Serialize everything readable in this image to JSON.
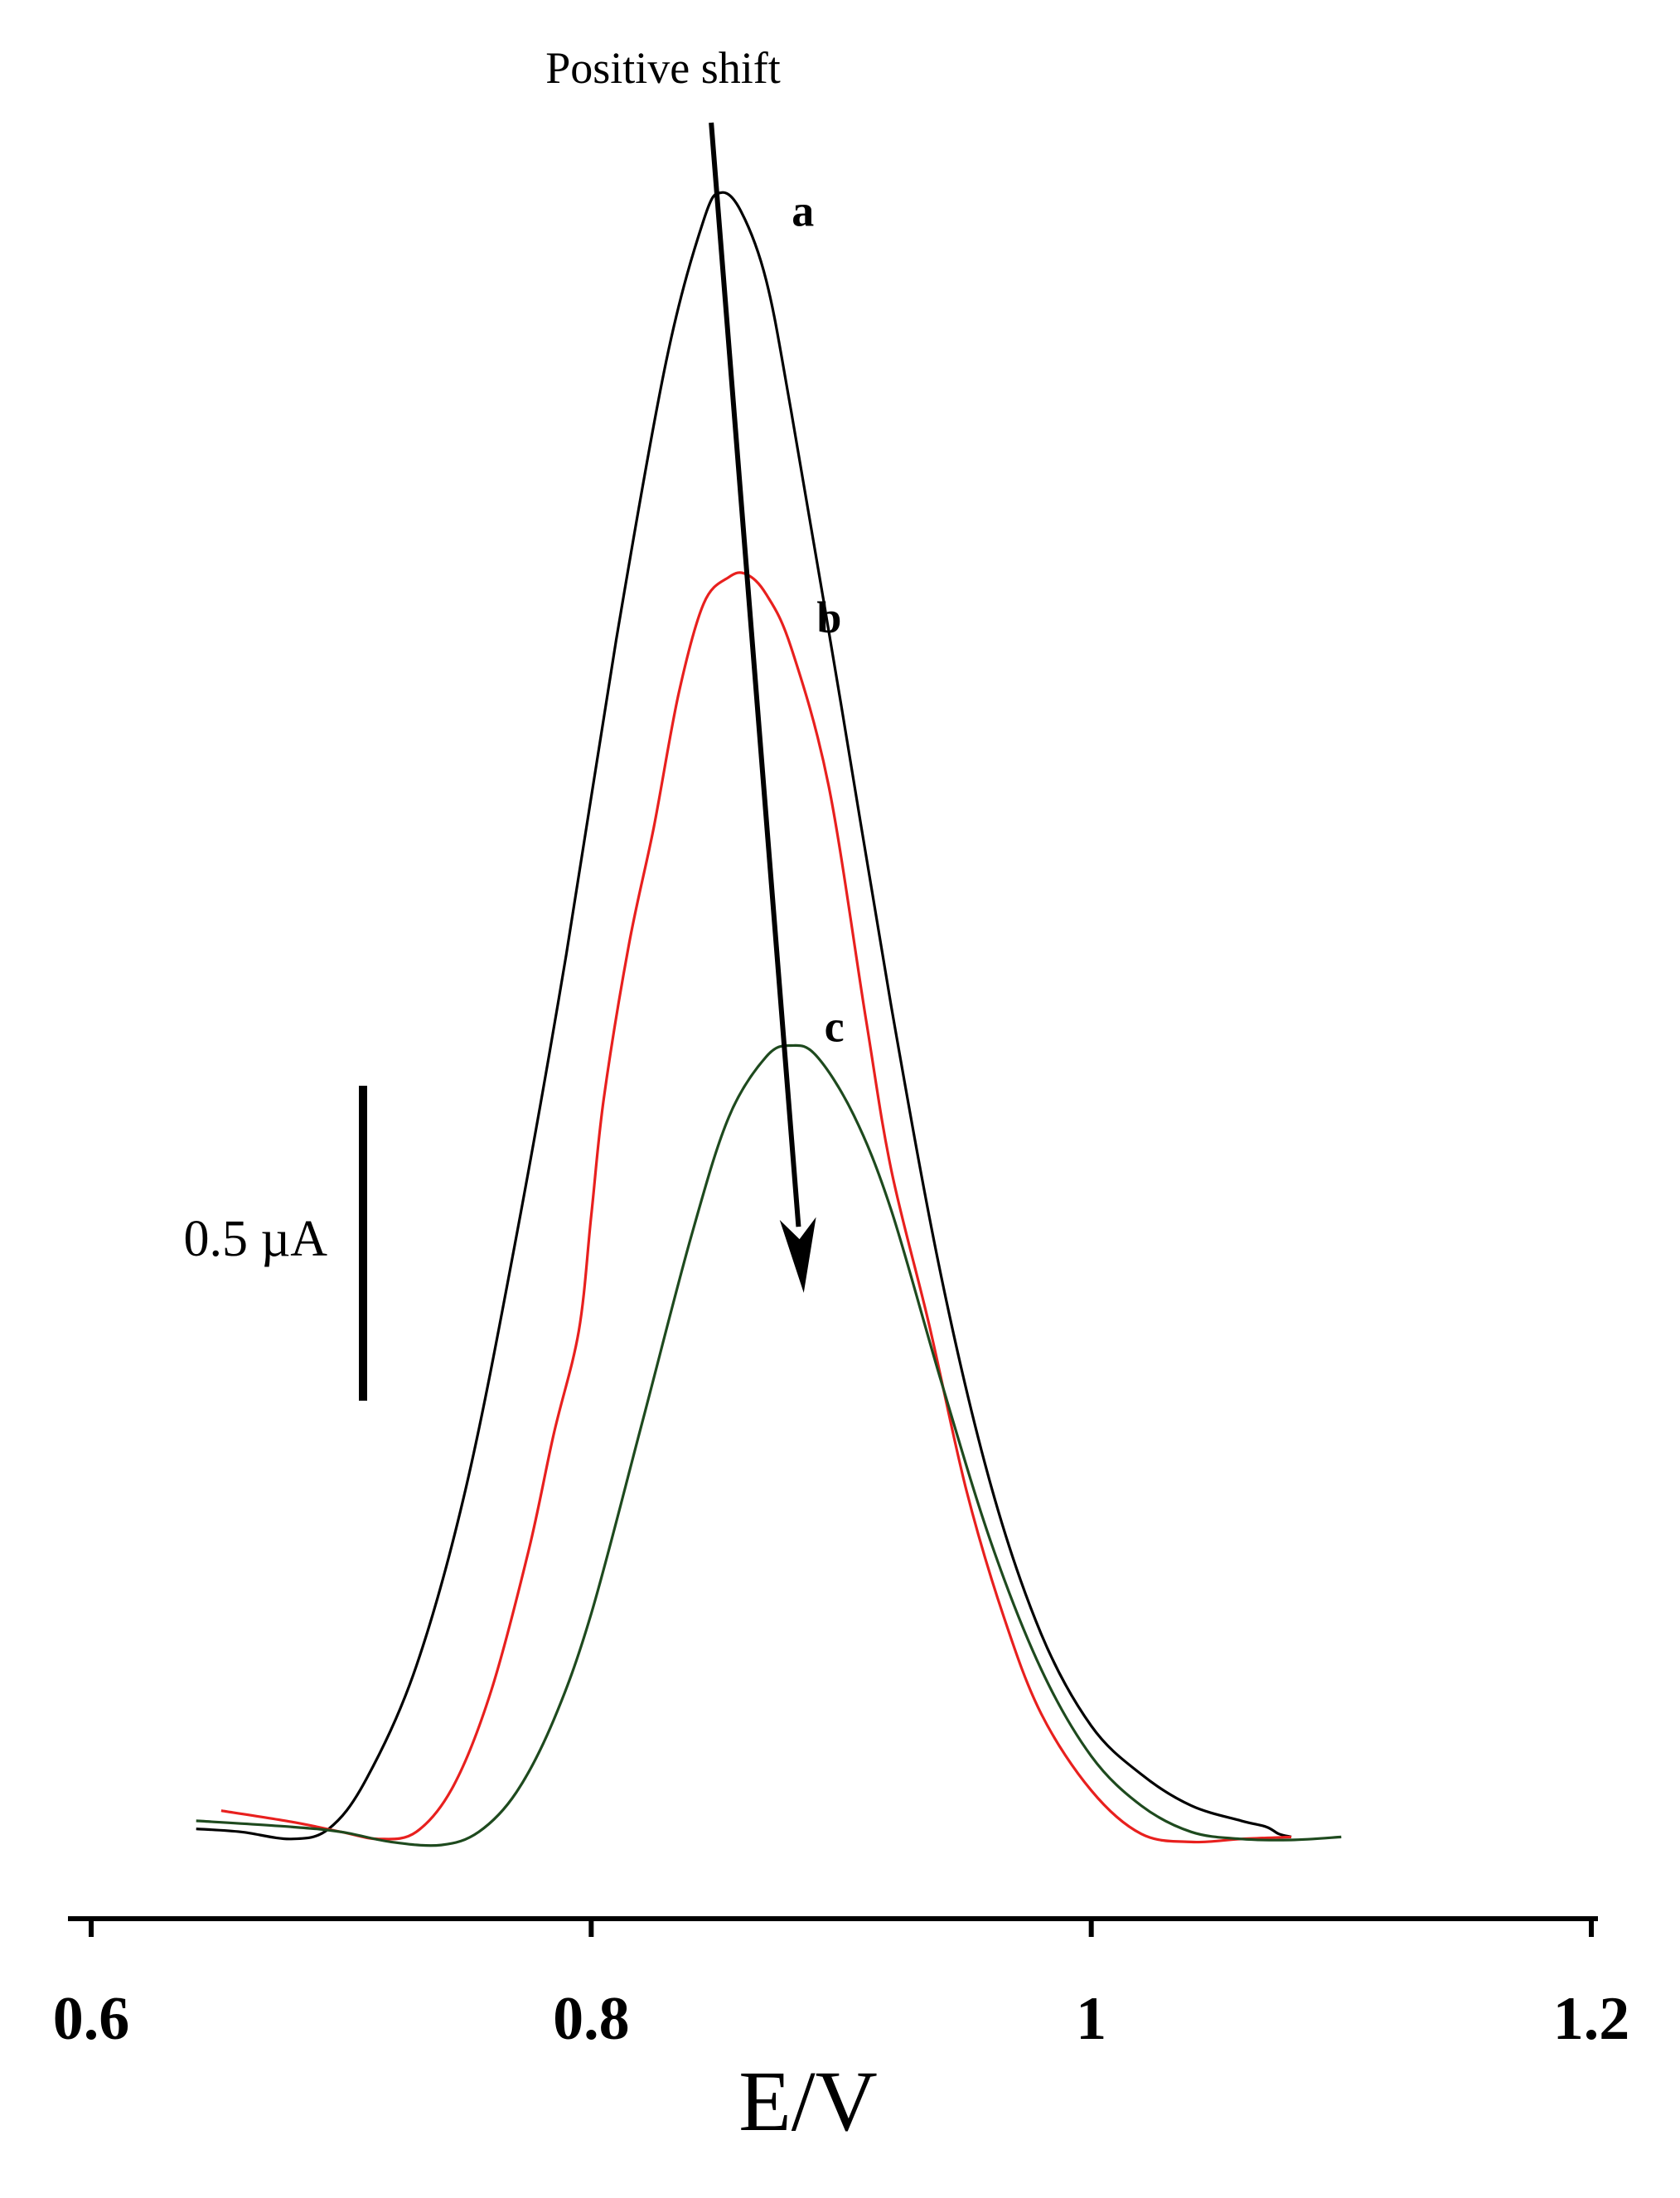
{
  "chart_data": {
    "type": "line",
    "title": "",
    "xlabel": "E/V",
    "ylabel": "",
    "xlim": [
      0.6,
      1.2
    ],
    "ylim": [
      -0.05,
      1.85
    ],
    "x_ticks": [
      0.6,
      0.8,
      1.0,
      1.2
    ],
    "x_tick_labels": [
      "0.6",
      "0.8",
      "1",
      "1.2"
    ],
    "grid": false,
    "legend": "none",
    "scale_bar": {
      "label": "0.5 µA",
      "value": 0.5
    },
    "annotation": {
      "text": "Positive shift",
      "arrow_from": [
        0.848,
        2.0
      ],
      "arrow_to": [
        0.885,
        0.57
      ]
    },
    "series": [
      {
        "label": "a",
        "color": "#000000",
        "points": [
          [
            0.642,
            0.039
          ],
          [
            0.66,
            0.036
          ],
          [
            0.68,
            0.029
          ],
          [
            0.695,
            0.039
          ],
          [
            0.71,
            0.088
          ],
          [
            0.73,
            0.2
          ],
          [
            0.75,
            0.378
          ],
          [
            0.77,
            0.625
          ],
          [
            0.79,
            0.905
          ],
          [
            0.81,
            1.217
          ],
          [
            0.83,
            1.493
          ],
          [
            0.845,
            1.633
          ],
          [
            0.852,
            1.66
          ],
          [
            0.86,
            1.641
          ],
          [
            0.87,
            1.573
          ],
          [
            0.88,
            1.443
          ],
          [
            0.9,
            1.152
          ],
          [
            0.92,
            0.854
          ],
          [
            0.94,
            0.586
          ],
          [
            0.96,
            0.378
          ],
          [
            0.98,
            0.232
          ],
          [
            1.0,
            0.141
          ],
          [
            1.02,
            0.093
          ],
          [
            1.04,
            0.062
          ],
          [
            1.06,
            0.047
          ],
          [
            1.07,
            0.041
          ],
          [
            1.075,
            0.034
          ],
          [
            1.08,
            0.031
          ]
        ]
      },
      {
        "label": "b",
        "color": "#e8201e",
        "points": [
          [
            0.652,
            0.057
          ],
          [
            0.68,
            0.046
          ],
          [
            0.7,
            0.036
          ],
          [
            0.715,
            0.029
          ],
          [
            0.73,
            0.036
          ],
          [
            0.745,
            0.082
          ],
          [
            0.76,
            0.176
          ],
          [
            0.775,
            0.315
          ],
          [
            0.785,
            0.43
          ],
          [
            0.795,
            0.532
          ],
          [
            0.8,
            0.646
          ],
          [
            0.805,
            0.762
          ],
          [
            0.815,
            0.914
          ],
          [
            0.825,
            1.031
          ],
          [
            0.835,
            1.164
          ],
          [
            0.845,
            1.253
          ],
          [
            0.855,
            1.279
          ],
          [
            0.862,
            1.282
          ],
          [
            0.87,
            1.262
          ],
          [
            0.88,
            1.209
          ],
          [
            0.895,
            1.072
          ],
          [
            0.91,
            0.839
          ],
          [
            0.92,
            0.692
          ],
          [
            0.935,
            0.54
          ],
          [
            0.95,
            0.375
          ],
          [
            0.965,
            0.249
          ],
          [
            0.98,
            0.153
          ],
          [
            1.0,
            0.077
          ],
          [
            1.02,
            0.034
          ],
          [
            1.04,
            0.026
          ],
          [
            1.06,
            0.029
          ],
          [
            1.08,
            0.031
          ]
        ]
      },
      {
        "label": "c",
        "color": "#1e4a1e",
        "points": [
          [
            0.642,
            0.047
          ],
          [
            0.68,
            0.041
          ],
          [
            0.7,
            0.036
          ],
          [
            0.72,
            0.026
          ],
          [
            0.74,
            0.023
          ],
          [
            0.755,
            0.036
          ],
          [
            0.77,
            0.075
          ],
          [
            0.785,
            0.147
          ],
          [
            0.8,
            0.252
          ],
          [
            0.82,
            0.438
          ],
          [
            0.84,
            0.626
          ],
          [
            0.855,
            0.744
          ],
          [
            0.87,
            0.804
          ],
          [
            0.88,
            0.815
          ],
          [
            0.89,
            0.805
          ],
          [
            0.905,
            0.746
          ],
          [
            0.92,
            0.652
          ],
          [
            0.94,
            0.482
          ],
          [
            0.96,
            0.322
          ],
          [
            0.98,
            0.197
          ],
          [
            1.0,
            0.111
          ],
          [
            1.02,
            0.062
          ],
          [
            1.04,
            0.036
          ],
          [
            1.06,
            0.029
          ],
          [
            1.08,
            0.028
          ],
          [
            1.1,
            0.031
          ]
        ]
      }
    ]
  }
}
